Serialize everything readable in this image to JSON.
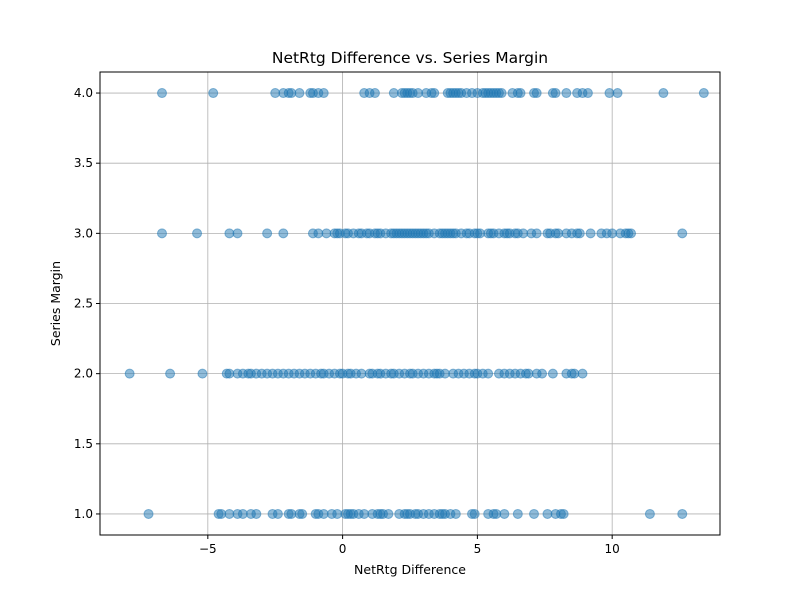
{
  "chart_data": {
    "type": "scatter",
    "title": "NetRtg Difference vs. Series Margin",
    "xlabel": "NetRtg Difference",
    "ylabel": "Series Margin",
    "xlim": [
      -9,
      14
    ],
    "ylim": [
      0.85,
      4.15
    ],
    "x_ticks": [
      -5,
      0,
      5,
      10
    ],
    "x_tick_labels": [
      "−5",
      "0",
      "5",
      "10"
    ],
    "y_ticks": [
      1.0,
      1.5,
      2.0,
      2.5,
      3.0,
      3.5,
      4.0
    ],
    "y_tick_labels": [
      "1.0",
      "1.5",
      "2.0",
      "2.5",
      "3.0",
      "3.5",
      "4.0"
    ],
    "grid": true,
    "legend": false,
    "colors": {
      "marker_fill": "#1f77b4",
      "marker_opacity": 0.5,
      "grid": "#b0b0b0",
      "axes": "#000000"
    },
    "series": [
      {
        "points": [
          [
            -6.7,
            4
          ],
          [
            -4.8,
            4
          ],
          [
            -2.5,
            4
          ],
          [
            -2.2,
            4
          ],
          [
            -2.0,
            4
          ],
          [
            -1.9,
            4
          ],
          [
            -1.6,
            4
          ],
          [
            -1.2,
            4
          ],
          [
            -1.1,
            4
          ],
          [
            -0.9,
            4
          ],
          [
            -0.7,
            4
          ],
          [
            0.8,
            4
          ],
          [
            1.0,
            4
          ],
          [
            1.2,
            4
          ],
          [
            1.9,
            4
          ],
          [
            2.2,
            4
          ],
          [
            2.3,
            4
          ],
          [
            2.4,
            4
          ],
          [
            2.5,
            4
          ],
          [
            2.6,
            4
          ],
          [
            2.8,
            4
          ],
          [
            3.1,
            4
          ],
          [
            3.3,
            4
          ],
          [
            3.4,
            4
          ],
          [
            3.9,
            4
          ],
          [
            4.0,
            4
          ],
          [
            4.1,
            4
          ],
          [
            4.2,
            4
          ],
          [
            4.3,
            4
          ],
          [
            4.4,
            4
          ],
          [
            4.6,
            4
          ],
          [
            4.8,
            4
          ],
          [
            5.0,
            4
          ],
          [
            5.2,
            4
          ],
          [
            5.3,
            4
          ],
          [
            5.4,
            4
          ],
          [
            5.5,
            4
          ],
          [
            5.6,
            4
          ],
          [
            5.7,
            4
          ],
          [
            5.8,
            4
          ],
          [
            5.9,
            4
          ],
          [
            6.3,
            4
          ],
          [
            6.5,
            4
          ],
          [
            6.6,
            4
          ],
          [
            7.1,
            4
          ],
          [
            7.2,
            4
          ],
          [
            7.8,
            4
          ],
          [
            7.9,
            4
          ],
          [
            8.3,
            4
          ],
          [
            8.7,
            4
          ],
          [
            8.9,
            4
          ],
          [
            9.1,
            4
          ],
          [
            9.9,
            4
          ],
          [
            10.2,
            4
          ],
          [
            11.9,
            4
          ],
          [
            13.4,
            4
          ],
          [
            -6.7,
            3
          ],
          [
            -5.4,
            3
          ],
          [
            -4.2,
            3
          ],
          [
            -3.9,
            3
          ],
          [
            -2.8,
            3
          ],
          [
            -2.2,
            3
          ],
          [
            -1.1,
            3
          ],
          [
            -0.9,
            3
          ],
          [
            -0.6,
            3
          ],
          [
            -0.3,
            3
          ],
          [
            -0.2,
            3
          ],
          [
            -0.1,
            3
          ],
          [
            0.1,
            3
          ],
          [
            0.2,
            3
          ],
          [
            0.4,
            3
          ],
          [
            0.6,
            3
          ],
          [
            0.7,
            3
          ],
          [
            0.9,
            3
          ],
          [
            1.0,
            3
          ],
          [
            1.2,
            3
          ],
          [
            1.3,
            3
          ],
          [
            1.4,
            3
          ],
          [
            1.6,
            3
          ],
          [
            1.8,
            3
          ],
          [
            1.9,
            3
          ],
          [
            2.0,
            3
          ],
          [
            2.1,
            3
          ],
          [
            2.2,
            3
          ],
          [
            2.3,
            3
          ],
          [
            2.4,
            3
          ],
          [
            2.5,
            3
          ],
          [
            2.6,
            3
          ],
          [
            2.7,
            3
          ],
          [
            2.8,
            3
          ],
          [
            2.9,
            3
          ],
          [
            3.0,
            3
          ],
          [
            3.1,
            3
          ],
          [
            3.2,
            3
          ],
          [
            3.4,
            3
          ],
          [
            3.6,
            3
          ],
          [
            3.7,
            3
          ],
          [
            3.8,
            3
          ],
          [
            3.9,
            3
          ],
          [
            4.0,
            3
          ],
          [
            4.1,
            3
          ],
          [
            4.2,
            3
          ],
          [
            4.4,
            3
          ],
          [
            4.6,
            3
          ],
          [
            4.7,
            3
          ],
          [
            4.9,
            3
          ],
          [
            5.0,
            3
          ],
          [
            5.1,
            3
          ],
          [
            5.4,
            3
          ],
          [
            5.5,
            3
          ],
          [
            5.6,
            3
          ],
          [
            5.8,
            3
          ],
          [
            6.0,
            3
          ],
          [
            6.1,
            3
          ],
          [
            6.2,
            3
          ],
          [
            6.4,
            3
          ],
          [
            6.5,
            3
          ],
          [
            6.7,
            3
          ],
          [
            7.0,
            3
          ],
          [
            7.2,
            3
          ],
          [
            7.6,
            3
          ],
          [
            7.7,
            3
          ],
          [
            7.9,
            3
          ],
          [
            8.0,
            3
          ],
          [
            8.3,
            3
          ],
          [
            8.5,
            3
          ],
          [
            8.7,
            3
          ],
          [
            8.8,
            3
          ],
          [
            9.2,
            3
          ],
          [
            9.6,
            3
          ],
          [
            9.8,
            3
          ],
          [
            10.0,
            3
          ],
          [
            10.3,
            3
          ],
          [
            10.5,
            3
          ],
          [
            10.6,
            3
          ],
          [
            10.7,
            3
          ],
          [
            12.6,
            3
          ],
          [
            -7.9,
            2
          ],
          [
            -6.4,
            2
          ],
          [
            -5.2,
            2
          ],
          [
            -4.3,
            2
          ],
          [
            -4.2,
            2
          ],
          [
            -3.9,
            2
          ],
          [
            -3.7,
            2
          ],
          [
            -3.5,
            2
          ],
          [
            -3.4,
            2
          ],
          [
            -3.2,
            2
          ],
          [
            -3.0,
            2
          ],
          [
            -2.8,
            2
          ],
          [
            -2.6,
            2
          ],
          [
            -2.4,
            2
          ],
          [
            -2.2,
            2
          ],
          [
            -2.0,
            2
          ],
          [
            -1.8,
            2
          ],
          [
            -1.6,
            2
          ],
          [
            -1.4,
            2
          ],
          [
            -1.2,
            2
          ],
          [
            -1.0,
            2
          ],
          [
            -0.8,
            2
          ],
          [
            -0.7,
            2
          ],
          [
            -0.5,
            2
          ],
          [
            -0.3,
            2
          ],
          [
            -0.1,
            2
          ],
          [
            0.0,
            2
          ],
          [
            0.2,
            2
          ],
          [
            0.3,
            2
          ],
          [
            0.5,
            2
          ],
          [
            0.7,
            2
          ],
          [
            1.0,
            2
          ],
          [
            1.1,
            2
          ],
          [
            1.3,
            2
          ],
          [
            1.4,
            2
          ],
          [
            1.6,
            2
          ],
          [
            1.8,
            2
          ],
          [
            1.9,
            2
          ],
          [
            2.1,
            2
          ],
          [
            2.3,
            2
          ],
          [
            2.5,
            2
          ],
          [
            2.6,
            2
          ],
          [
            2.8,
            2
          ],
          [
            3.0,
            2
          ],
          [
            3.2,
            2
          ],
          [
            3.4,
            2
          ],
          [
            3.5,
            2
          ],
          [
            3.6,
            2
          ],
          [
            3.8,
            2
          ],
          [
            4.1,
            2
          ],
          [
            4.3,
            2
          ],
          [
            4.5,
            2
          ],
          [
            4.7,
            2
          ],
          [
            4.9,
            2
          ],
          [
            5.0,
            2
          ],
          [
            5.2,
            2
          ],
          [
            5.4,
            2
          ],
          [
            5.8,
            2
          ],
          [
            6.0,
            2
          ],
          [
            6.2,
            2
          ],
          [
            6.4,
            2
          ],
          [
            6.6,
            2
          ],
          [
            6.8,
            2
          ],
          [
            6.9,
            2
          ],
          [
            7.2,
            2
          ],
          [
            7.4,
            2
          ],
          [
            7.8,
            2
          ],
          [
            8.3,
            2
          ],
          [
            8.5,
            2
          ],
          [
            8.6,
            2
          ],
          [
            8.9,
            2
          ],
          [
            -7.2,
            1
          ],
          [
            -4.6,
            1
          ],
          [
            -4.5,
            1
          ],
          [
            -4.2,
            1
          ],
          [
            -3.9,
            1
          ],
          [
            -3.7,
            1
          ],
          [
            -3.4,
            1
          ],
          [
            -3.2,
            1
          ],
          [
            -2.6,
            1
          ],
          [
            -2.4,
            1
          ],
          [
            -2.0,
            1
          ],
          [
            -1.9,
            1
          ],
          [
            -1.6,
            1
          ],
          [
            -1.5,
            1
          ],
          [
            -1.0,
            1
          ],
          [
            -0.9,
            1
          ],
          [
            -0.7,
            1
          ],
          [
            -0.4,
            1
          ],
          [
            -0.2,
            1
          ],
          [
            0.1,
            1
          ],
          [
            0.2,
            1
          ],
          [
            0.3,
            1
          ],
          [
            0.4,
            1
          ],
          [
            0.6,
            1
          ],
          [
            0.8,
            1
          ],
          [
            1.1,
            1
          ],
          [
            1.3,
            1
          ],
          [
            1.4,
            1
          ],
          [
            1.5,
            1
          ],
          [
            1.7,
            1
          ],
          [
            2.1,
            1
          ],
          [
            2.3,
            1
          ],
          [
            2.4,
            1
          ],
          [
            2.5,
            1
          ],
          [
            2.7,
            1
          ],
          [
            2.8,
            1
          ],
          [
            3.0,
            1
          ],
          [
            3.2,
            1
          ],
          [
            3.4,
            1
          ],
          [
            3.6,
            1
          ],
          [
            3.7,
            1
          ],
          [
            3.8,
            1
          ],
          [
            4.0,
            1
          ],
          [
            4.2,
            1
          ],
          [
            4.8,
            1
          ],
          [
            4.9,
            1
          ],
          [
            5.4,
            1
          ],
          [
            5.6,
            1
          ],
          [
            5.7,
            1
          ],
          [
            6.0,
            1
          ],
          [
            6.5,
            1
          ],
          [
            7.1,
            1
          ],
          [
            7.6,
            1
          ],
          [
            7.9,
            1
          ],
          [
            8.1,
            1
          ],
          [
            8.2,
            1
          ],
          [
            11.4,
            1
          ],
          [
            12.6,
            1
          ]
        ]
      }
    ]
  }
}
